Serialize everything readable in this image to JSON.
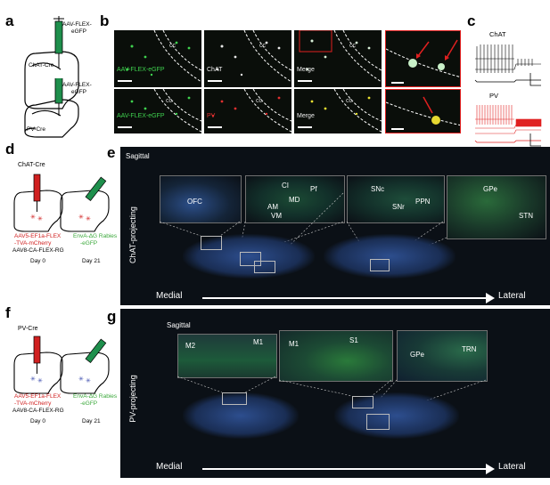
{
  "panels": {
    "a": {
      "letter": "a",
      "virus": [
        "AAV-FLEX-",
        "eGFP"
      ],
      "mouse1": "ChAT-Cre",
      "mouse2": "PV-Cre"
    },
    "b": {
      "letter": "b",
      "row1": [
        "AAV-FLEX-eGFP",
        "ChAT",
        "Merge"
      ],
      "row2": [
        "AAV-FLEX-eGFP",
        "PV",
        "Merge"
      ],
      "cc": "cc"
    },
    "c": {
      "letter": "c",
      "trace1": "ChAT",
      "trace2": "PV"
    },
    "d": {
      "letter": "d",
      "mouse": "ChAT-Cre",
      "inj1": [
        "AAV5-EF1a-FLEX",
        "-TVA-mCherry"
      ],
      "inj1b": "AAV8-CA-FLEX-RG",
      "inj2": [
        "EnvA-ΔG Rabies",
        "-eGFP"
      ],
      "day0": "Day 0",
      "day21": "Day 21"
    },
    "e": {
      "letter": "e",
      "sagittal": "Sagittal",
      "side": "ChAT-projecting",
      "insets": [
        {
          "labels": [
            "OFC"
          ]
        },
        {
          "labels": [
            "CI",
            "Pf",
            "MD",
            "AM",
            "VM"
          ]
        },
        {
          "labels": [
            "SNc",
            "SNr",
            "PPN"
          ]
        },
        {
          "labels": [
            "GPe",
            "STN"
          ]
        }
      ],
      "medial": "Medial",
      "lateral": "Lateral"
    },
    "f": {
      "letter": "f",
      "mouse": "PV-Cre",
      "inj1": [
        "AAV5-EF1a-FLEX",
        "-TVA-mCherry"
      ],
      "inj1b": "AAV8-CA-FLEX-RG",
      "inj2": [
        "EnvA-ΔG Rabies",
        "-eGFP"
      ],
      "day0": "Day 0",
      "day21": "Day 21"
    },
    "g": {
      "letter": "g",
      "sagittal": "Sagittal",
      "side": "PV-projecting",
      "insets": [
        {
          "labels": [
            "M2",
            "M1"
          ]
        },
        {
          "labels": [
            "M1",
            "S1"
          ]
        },
        {
          "labels": [
            "GPe",
            "TRN"
          ]
        }
      ],
      "medial": "Medial",
      "lateral": "Lateral"
    }
  }
}
